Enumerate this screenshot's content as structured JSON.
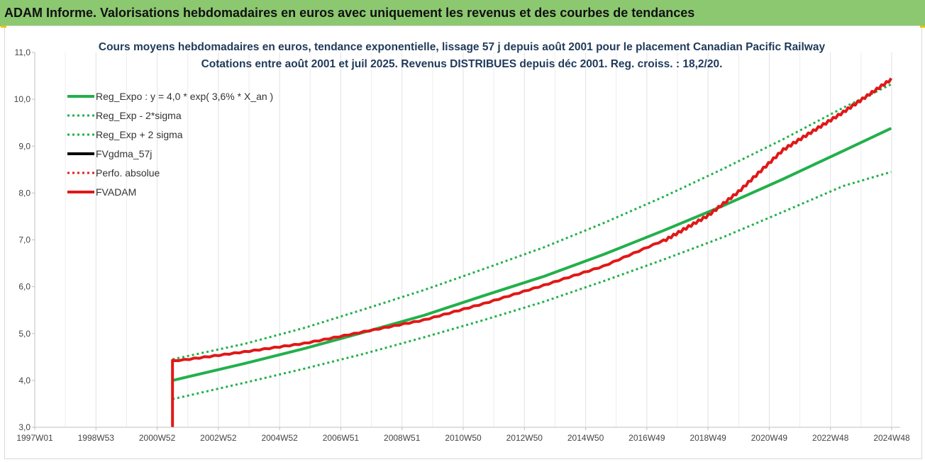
{
  "header": {
    "title": "ADAM Informe. Valorisations hebdomadaires en euros avec uniquement les revenus et des courbes de tendances"
  },
  "chart_data": {
    "type": "line",
    "title_line1": "Cours moyens hebdomadaires en euros, tendance exponentielle, lissage 57 j depuis août 2001 pour le placement  Canadian Pacific Railway",
    "title_line2": "Cotations entre août 2001 et juil 2025. Revenus DISTRIBUES depuis déc 2001. Reg. croiss. : 18,2/20.",
    "ylim": [
      3.0,
      11.0
    ],
    "yticks": [
      "3,0",
      "4,0",
      "5,0",
      "6,0",
      "7,0",
      "8,0",
      "9,0",
      "10,0",
      "11,0"
    ],
    "xticks": [
      "1997W01",
      "1998W53",
      "2000W52",
      "2002W52",
      "2004W52",
      "2006W51",
      "2008W51",
      "2010W50",
      "2012W50",
      "2014W50",
      "2016W49",
      "2018W49",
      "2020W49",
      "2022W48",
      "2024W48"
    ],
    "xlim": [
      1997.0,
      2025.9
    ],
    "grid": "vertical",
    "legend_position": "top-left",
    "series": [
      {
        "name": "Reg_Expo : y = 4,0 * exp( 3,6% *  X_an )",
        "color": "#22b04b",
        "style": "solid",
        "x": [
          2001.6,
          2004.0,
          2006.0,
          2008.0,
          2010.0,
          2012.0,
          2014.0,
          2016.0,
          2018.0,
          2020.0,
          2022.0,
          2024.0,
          2025.6
        ],
        "y": [
          4.0,
          4.36,
          4.68,
          5.03,
          5.39,
          5.81,
          6.22,
          6.69,
          7.2,
          7.73,
          8.3,
          8.9,
          9.38
        ]
      },
      {
        "name": "Reg_Exp - 2*sigma",
        "color": "#22b04b",
        "style": "dotted",
        "x": [
          2001.6,
          2004.0,
          2006.0,
          2008.0,
          2010.0,
          2012.0,
          2014.0,
          2016.0,
          2018.0,
          2020.0,
          2022.0,
          2024.0,
          2025.6
        ],
        "y": [
          3.6,
          3.95,
          4.25,
          4.57,
          4.92,
          5.29,
          5.68,
          6.12,
          6.58,
          7.06,
          7.6,
          8.15,
          8.45
        ]
      },
      {
        "name": "Reg_Exp + 2 sigma",
        "color": "#22b04b",
        "style": "dotted",
        "x": [
          2001.6,
          2004.0,
          2006.0,
          2008.0,
          2010.0,
          2012.0,
          2014.0,
          2016.0,
          2018.0,
          2020.0,
          2022.0,
          2024.0,
          2025.6
        ],
        "y": [
          4.45,
          4.78,
          5.12,
          5.52,
          5.93,
          6.38,
          6.84,
          7.36,
          7.92,
          8.52,
          9.15,
          9.82,
          10.32
        ]
      },
      {
        "name": "FVgdma_57j",
        "color": "#000000",
        "style": "solid",
        "x": [],
        "y": []
      },
      {
        "name": "Perfo. absolue",
        "color": "#e02020",
        "style": "dotted",
        "x": [],
        "y": []
      },
      {
        "name": "FVADAM",
        "color": "#e01818",
        "style": "solid",
        "x": [
          2001.6,
          2001.6,
          2002.0,
          2004.0,
          2006.0,
          2008.0,
          2010.0,
          2012.0,
          2014.0,
          2016.0,
          2018.0,
          2019.5,
          2020.5,
          2022.0,
          2024.0,
          2025.6
        ],
        "y": [
          3.0,
          4.43,
          4.45,
          4.62,
          4.8,
          5.05,
          5.3,
          5.65,
          6.04,
          6.45,
          7.0,
          7.55,
          8.05,
          8.95,
          9.75,
          10.45
        ]
      }
    ]
  }
}
